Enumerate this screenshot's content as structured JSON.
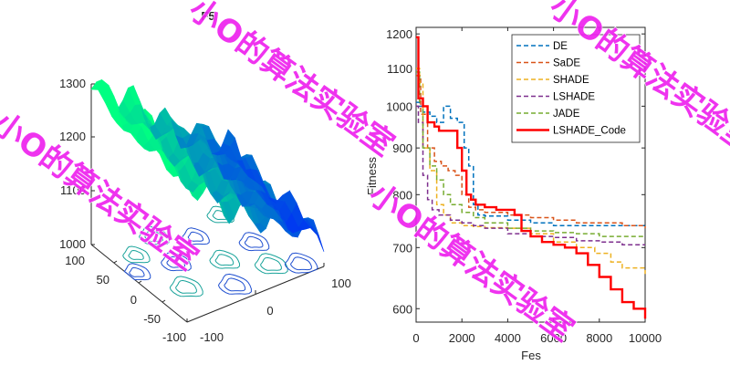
{
  "surface_plot": {
    "title": "F5",
    "z_ticks": [
      "1000",
      "1100",
      "1200",
      "1300"
    ],
    "x_ticks": [
      "-100",
      "0",
      "100"
    ],
    "y_ticks": [
      "-100",
      "-50",
      "0",
      "50",
      "100"
    ]
  },
  "convergence_plot": {
    "xlabel": "Fes",
    "ylabel": "Fitness",
    "x_ticks": [
      "0",
      "2000",
      "4000",
      "6000",
      "8000",
      "10000"
    ],
    "y_ticks": [
      "600",
      "700",
      "800",
      "900",
      "1000",
      "1100",
      "1200"
    ]
  },
  "watermark": "小O的算法实验室",
  "chart_data": [
    {
      "type": "surface",
      "title": "F5",
      "xlim": [
        -100,
        100
      ],
      "ylim": [
        -100,
        100
      ],
      "zlim": [
        1000,
        1300
      ],
      "has_contour": true,
      "colormap": "winter"
    },
    {
      "type": "line",
      "title": "",
      "xlabel": "Fes",
      "ylabel": "Fitness",
      "xlim": [
        0,
        10000
      ],
      "ylim": [
        580,
        1220
      ],
      "y_scale": "log",
      "legend_position": "top-right",
      "series": [
        {
          "name": "DE",
          "color": "#0072BD",
          "style": "dashed",
          "x": [
            0,
            150,
            300,
            600,
            900,
            1200,
            1500,
            1800,
            2100,
            2300,
            2500,
            2700,
            3000,
            4000,
            5000,
            6000,
            7000,
            8000,
            9000,
            10000
          ],
          "y": [
            1010,
            1000,
            985,
            975,
            960,
            1000,
            970,
            960,
            900,
            860,
            780,
            760,
            758,
            750,
            745,
            740,
            740,
            740,
            740,
            740
          ]
        },
        {
          "name": "SaDE",
          "color": "#D95319",
          "style": "dashed",
          "x": [
            0,
            200,
            500,
            800,
            1100,
            1400,
            1700,
            2000,
            2300,
            2600,
            3000,
            4000,
            5000,
            6000,
            7000,
            8000,
            9000,
            10000
          ],
          "y": [
            1080,
            980,
            900,
            870,
            860,
            850,
            840,
            800,
            775,
            770,
            765,
            760,
            755,
            750,
            745,
            745,
            740,
            735
          ]
        },
        {
          "name": "SHADE",
          "color": "#EDB120",
          "style": "dashed",
          "x": [
            0,
            150,
            300,
            600,
            900,
            1200,
            1500,
            2000,
            2500,
            3000,
            4000,
            5000,
            6000,
            7000,
            7800,
            8500,
            9000,
            10000
          ],
          "y": [
            1100,
            1060,
            900,
            850,
            780,
            760,
            745,
            740,
            738,
            736,
            735,
            725,
            710,
            700,
            690,
            675,
            665,
            655
          ]
        },
        {
          "name": "LSHADE",
          "color": "#7E2F8E",
          "style": "dashed",
          "x": [
            0,
            100,
            300,
            500,
            700,
            1000,
            1500,
            2000,
            2500,
            3000,
            4000,
            5000,
            6000,
            7000,
            8000,
            9000,
            10000
          ],
          "y": [
            1000,
            960,
            840,
            790,
            770,
            760,
            750,
            745,
            740,
            735,
            725,
            720,
            718,
            712,
            710,
            705,
            705
          ]
        },
        {
          "name": "JADE",
          "color": "#77AC30",
          "style": "dashed",
          "x": [
            0,
            150,
            300,
            600,
            900,
            1200,
            1500,
            2000,
            2500,
            3000,
            4000,
            5000,
            6000,
            7000,
            8000,
            9000,
            10000
          ],
          "y": [
            1090,
            1010,
            900,
            860,
            830,
            800,
            780,
            765,
            755,
            745,
            735,
            730,
            727,
            725,
            720,
            720,
            720
          ]
        },
        {
          "name": "LSHADE_Code",
          "color": "#FF0000",
          "style": "solid",
          "x": [
            0,
            100,
            300,
            500,
            800,
            1000,
            1500,
            1800,
            2000,
            2200,
            2400,
            2600,
            3000,
            3500,
            4000,
            4300,
            4600,
            5000,
            5500,
            6000,
            6500,
            7000,
            7500,
            8000,
            8500,
            9000,
            9500,
            10000
          ],
          "y": [
            1190,
            1020,
            1000,
            960,
            950,
            940,
            940,
            900,
            850,
            800,
            790,
            780,
            775,
            770,
            770,
            760,
            730,
            720,
            710,
            705,
            700,
            690,
            670,
            650,
            630,
            610,
            600,
            585
          ]
        }
      ]
    }
  ]
}
